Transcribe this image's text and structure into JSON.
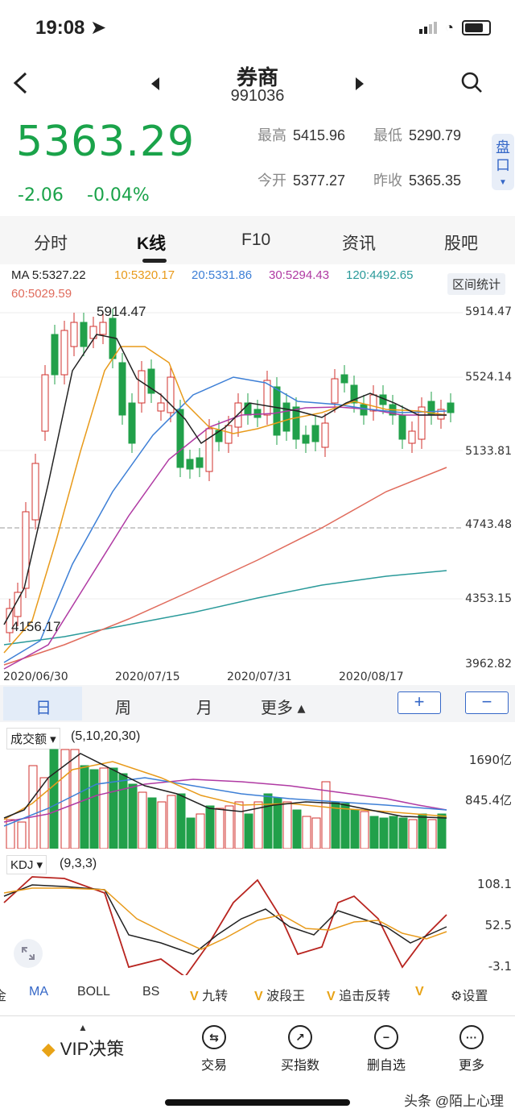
{
  "status": {
    "time": "19:08"
  },
  "header": {
    "title": "券商",
    "code": "991036"
  },
  "quote": {
    "price": "5363.29",
    "change": "-2.06",
    "change_pct": "-0.04%",
    "high_label": "最高",
    "high": "5415.96",
    "low_label": "最低",
    "low": "5290.79",
    "open_label": "今开",
    "open": "5377.27",
    "prev_label": "昨收",
    "prev": "5365.35",
    "pankou": "盘口"
  },
  "tabs": [
    "分时",
    "K线",
    "F10",
    "资讯",
    "股吧"
  ],
  "ma": {
    "ma5": "MA 5:5327.22",
    "ma10": "10:5320.17",
    "ma20": "20:5331.86",
    "ma30": "30:5294.43",
    "ma120": "120:4492.65",
    "ma60": "60:5029.59",
    "range_stat": "区间统计"
  },
  "colors": {
    "up": "#d0302c",
    "down": "#21a04a",
    "ma5": "#222222",
    "ma10": "#e89a1a",
    "ma20": "#3d7fd6",
    "ma30": "#b03aa3",
    "ma60": "#e06b5c",
    "ma120": "#2a9a9a",
    "accent": "#3567c7"
  },
  "kline": {
    "yaxis": [
      "5914.47",
      "5524.14",
      "5133.81",
      "4743.48",
      "4353.15",
      "3962.82"
    ],
    "xaxis": [
      "2020/06/30",
      "2020/07/15",
      "2020/07/31",
      "2020/08/17"
    ],
    "max_label": "5914.47",
    "min_label": "4156.17"
  },
  "periods": {
    "day": "日",
    "week": "周",
    "month": "月",
    "more": "更多 ▴",
    "zoom_in": "+",
    "zoom_out": "−"
  },
  "volume": {
    "selector": "成交额 ▾",
    "params": "(5,10,20,30)",
    "y_top": "1690亿",
    "y_mid": "845.4亿"
  },
  "kdj": {
    "selector": "KDJ ▾",
    "params": "(9,3,3)",
    "y_top": "108.1",
    "y_mid": "52.5",
    "y_bot": "-3.1"
  },
  "indicators": [
    "金",
    "MA",
    "BOLL",
    "BS",
    "九转",
    "波段王",
    "追击反转",
    "设置"
  ],
  "bottom_bar": {
    "vip": "VIP决策",
    "trade": "交易",
    "buy_index": "买指数",
    "del_fav": "删自选",
    "more": "更多"
  },
  "watermark": "头条 @陌上心理"
}
